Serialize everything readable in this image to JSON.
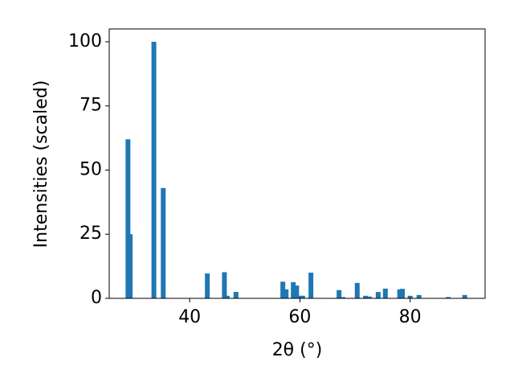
{
  "chart_data": {
    "type": "bar",
    "x_label": "2θ (°)",
    "y_label": "Intensities (scaled)",
    "x": [
      28.8,
      29.2,
      33.5,
      35.2,
      43.2,
      46.3,
      46.8,
      48.4,
      56.9,
      57.5,
      58.8,
      59.4,
      60.1,
      60.5,
      62.0,
      67.1,
      67.8,
      70.4,
      71.9,
      72.6,
      74.2,
      75.5,
      78.1,
      78.6,
      80.0,
      81.6,
      86.9,
      89.9
    ],
    "values": [
      62,
      25,
      100,
      43,
      9.7,
      10.2,
      1,
      2.5,
      6.5,
      3.5,
      6.3,
      5,
      1,
      1,
      10,
      3.2,
      0.5,
      6,
      1,
      0.7,
      2.5,
      3.8,
      3.5,
      3.7,
      1,
      1.3,
      0.5,
      1.3
    ],
    "color": "#1f77b4",
    "xlim": [
      25.4,
      93.6
    ],
    "xticks": [
      40,
      60,
      80
    ],
    "ylim": [
      0,
      105
    ],
    "yticks": [
      0,
      25,
      50,
      75,
      100
    ]
  }
}
